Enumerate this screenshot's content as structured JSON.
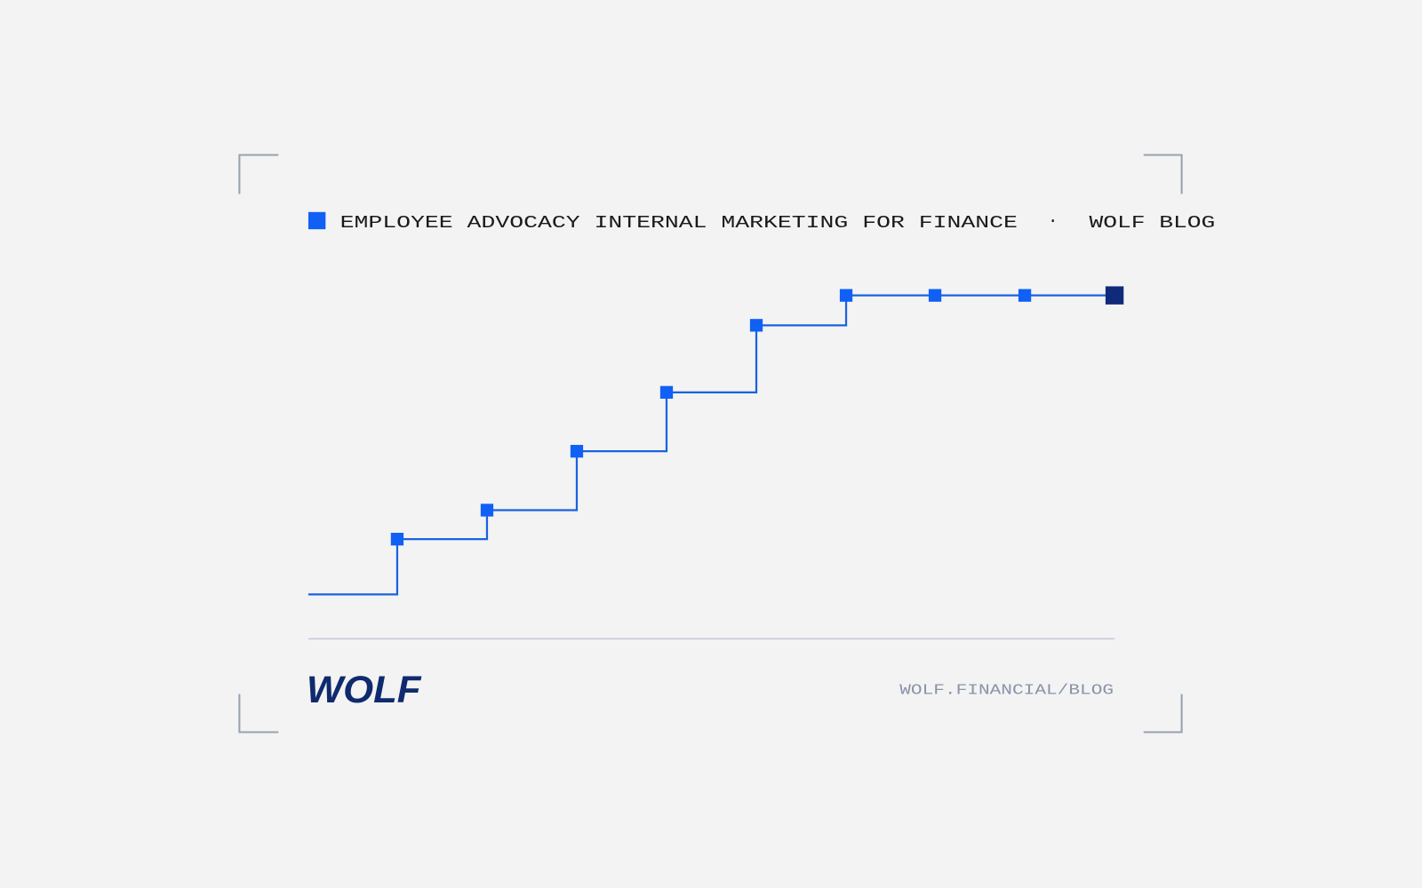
{
  "header": {
    "title": "EMPLOYEE ADVOCACY INTERNAL MARKETING FOR FINANCE",
    "separator": "·",
    "blog": "WOLF BLOG"
  },
  "footer": {
    "logo": "WOLF",
    "url": "WOLF.FINANCIAL/BLOG"
  }
}
